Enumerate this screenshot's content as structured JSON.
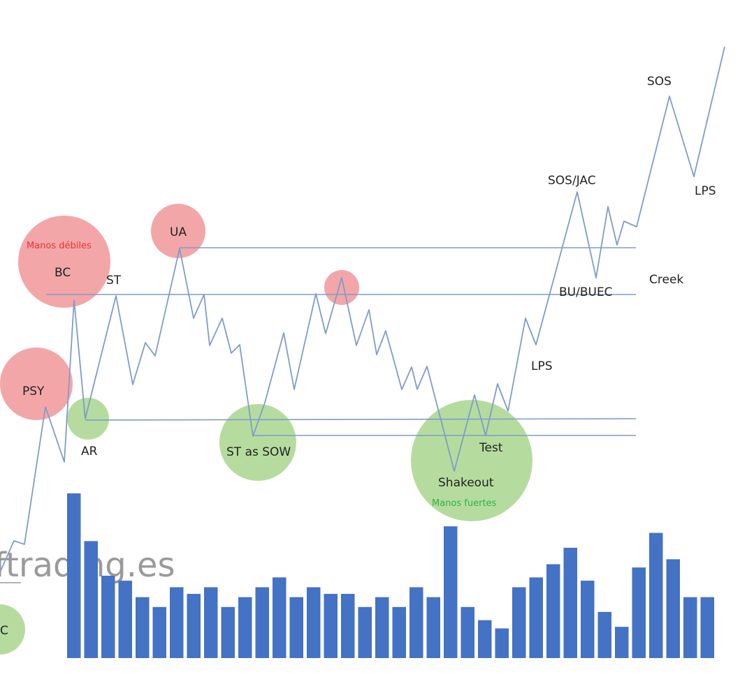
{
  "diagram": {
    "watermark": "ftrading.es",
    "labels": {
      "sos_top": "SOS",
      "sos_jac": "SOS/JAC",
      "lps_top": "LPS",
      "ua": "UA",
      "manos_debiles": "Manos débiles",
      "bc": "BC",
      "st": "ST",
      "creek": "Creek",
      "bu_buec": "BU/BUEC",
      "lps_mid": "LPS",
      "psy": "PSY",
      "ar": "AR",
      "st_as_sow": "ST as SOW",
      "test": "Test",
      "shakeout": "Shakeout",
      "manos_fuertes": "Manos fuertes",
      "sc_partial": "C"
    },
    "colors": {
      "price_line": "#7f9ccb",
      "level_line": "#7f9ccb",
      "red_circle": "#f3a6a8",
      "green_circle": "#b5dc9e",
      "volume_bar": "#4472c4",
      "red_text": "#e8333a",
      "green_text": "#2fb24a"
    },
    "volume_bars": [
      1.0,
      0.71,
      0.5,
      0.47,
      0.37,
      0.31,
      0.43,
      0.39,
      0.43,
      0.31,
      0.37,
      0.43,
      0.49,
      0.37,
      0.43,
      0.39,
      0.39,
      0.31,
      0.37,
      0.31,
      0.43,
      0.37,
      0.8,
      0.31,
      0.23,
      0.18,
      0.43,
      0.49,
      0.57,
      0.67,
      0.47,
      0.28,
      0.19,
      0.55,
      0.76,
      0.6,
      0.37,
      0.37
    ]
  }
}
